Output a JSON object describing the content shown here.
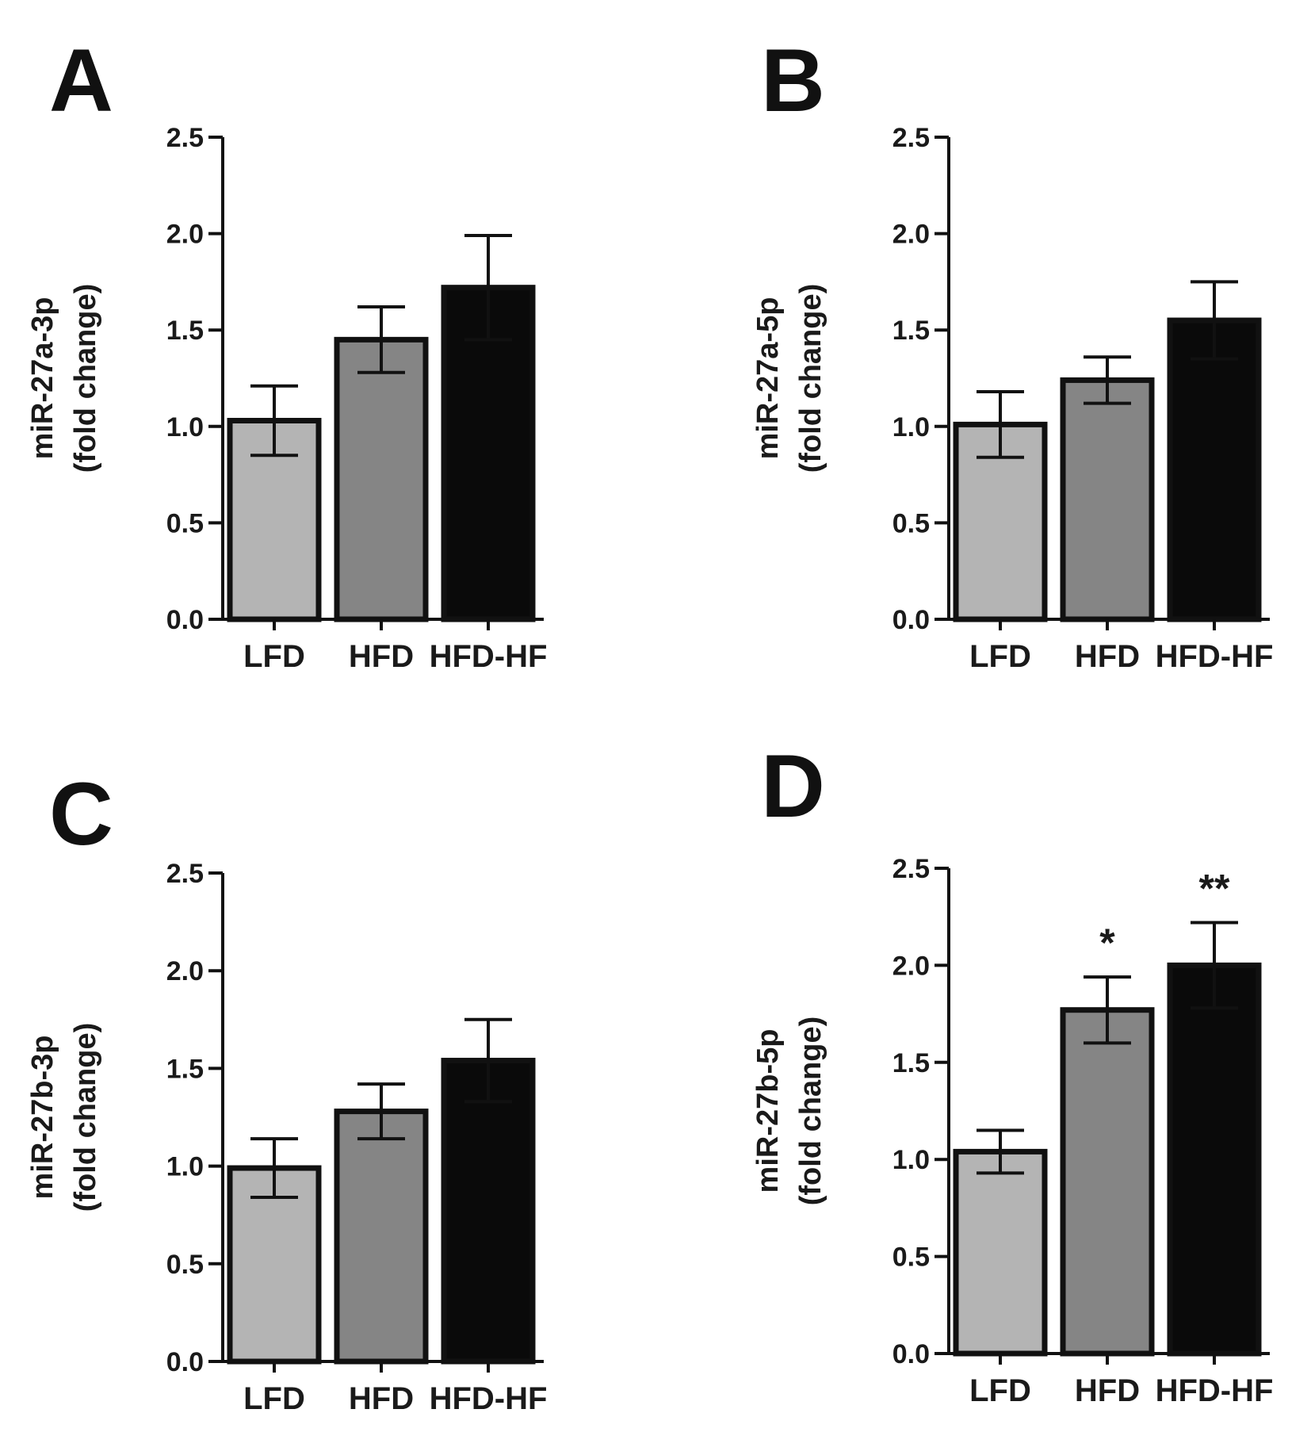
{
  "chart_data": [
    {
      "panel": "A",
      "type": "bar",
      "categories": [
        "LFD",
        "HFD",
        "HFD-HF"
      ],
      "values": [
        1.03,
        1.45,
        1.72
      ],
      "errors": [
        0.18,
        0.17,
        0.27
      ],
      "ylabel": "miR-27a-3p",
      "ylabel_sub": "(fold change)",
      "ylim": [
        0.0,
        2.5
      ],
      "yticks": [
        "0.0",
        "0.5",
        "1.0",
        "1.5",
        "2.0",
        "2.5"
      ],
      "significance": [
        "",
        "",
        ""
      ],
      "bar_colors": [
        "#b4b4b4",
        "#858585",
        "#0a0a0a"
      ]
    },
    {
      "panel": "B",
      "type": "bar",
      "categories": [
        "LFD",
        "HFD",
        "HFD-HF"
      ],
      "values": [
        1.01,
        1.24,
        1.55
      ],
      "errors": [
        0.17,
        0.12,
        0.2
      ],
      "ylabel": "miR-27a-5p",
      "ylabel_sub": "(fold change)",
      "ylim": [
        0.0,
        2.5
      ],
      "yticks": [
        "0.0",
        "0.5",
        "1.0",
        "1.5",
        "2.0",
        "2.5"
      ],
      "significance": [
        "",
        "",
        ""
      ],
      "bar_colors": [
        "#b4b4b4",
        "#858585",
        "#0a0a0a"
      ]
    },
    {
      "panel": "C",
      "type": "bar",
      "categories": [
        "LFD",
        "HFD",
        "HFD-HF"
      ],
      "values": [
        0.99,
        1.28,
        1.54
      ],
      "errors": [
        0.15,
        0.14,
        0.21
      ],
      "ylabel": "miR-27b-3p",
      "ylabel_sub": "(fold change)",
      "ylim": [
        0.0,
        2.5
      ],
      "yticks": [
        "0.0",
        "0.5",
        "1.0",
        "1.5",
        "2.0",
        "2.5"
      ],
      "significance": [
        "",
        "",
        ""
      ],
      "bar_colors": [
        "#b4b4b4",
        "#858585",
        "#0a0a0a"
      ]
    },
    {
      "panel": "D",
      "type": "bar",
      "categories": [
        "LFD",
        "HFD",
        "HFD-HF"
      ],
      "values": [
        1.04,
        1.77,
        2.0
      ],
      "errors": [
        0.11,
        0.17,
        0.22
      ],
      "ylabel": "miR-27b-5p",
      "ylabel_sub": "(fold change)",
      "ylim": [
        0.0,
        2.5
      ],
      "yticks": [
        "0.0",
        "0.5",
        "1.0",
        "1.5",
        "2.0",
        "2.5"
      ],
      "significance": [
        "",
        "*",
        "**"
      ],
      "bar_colors": [
        "#b4b4b4",
        "#858585",
        "#0a0a0a"
      ]
    }
  ]
}
